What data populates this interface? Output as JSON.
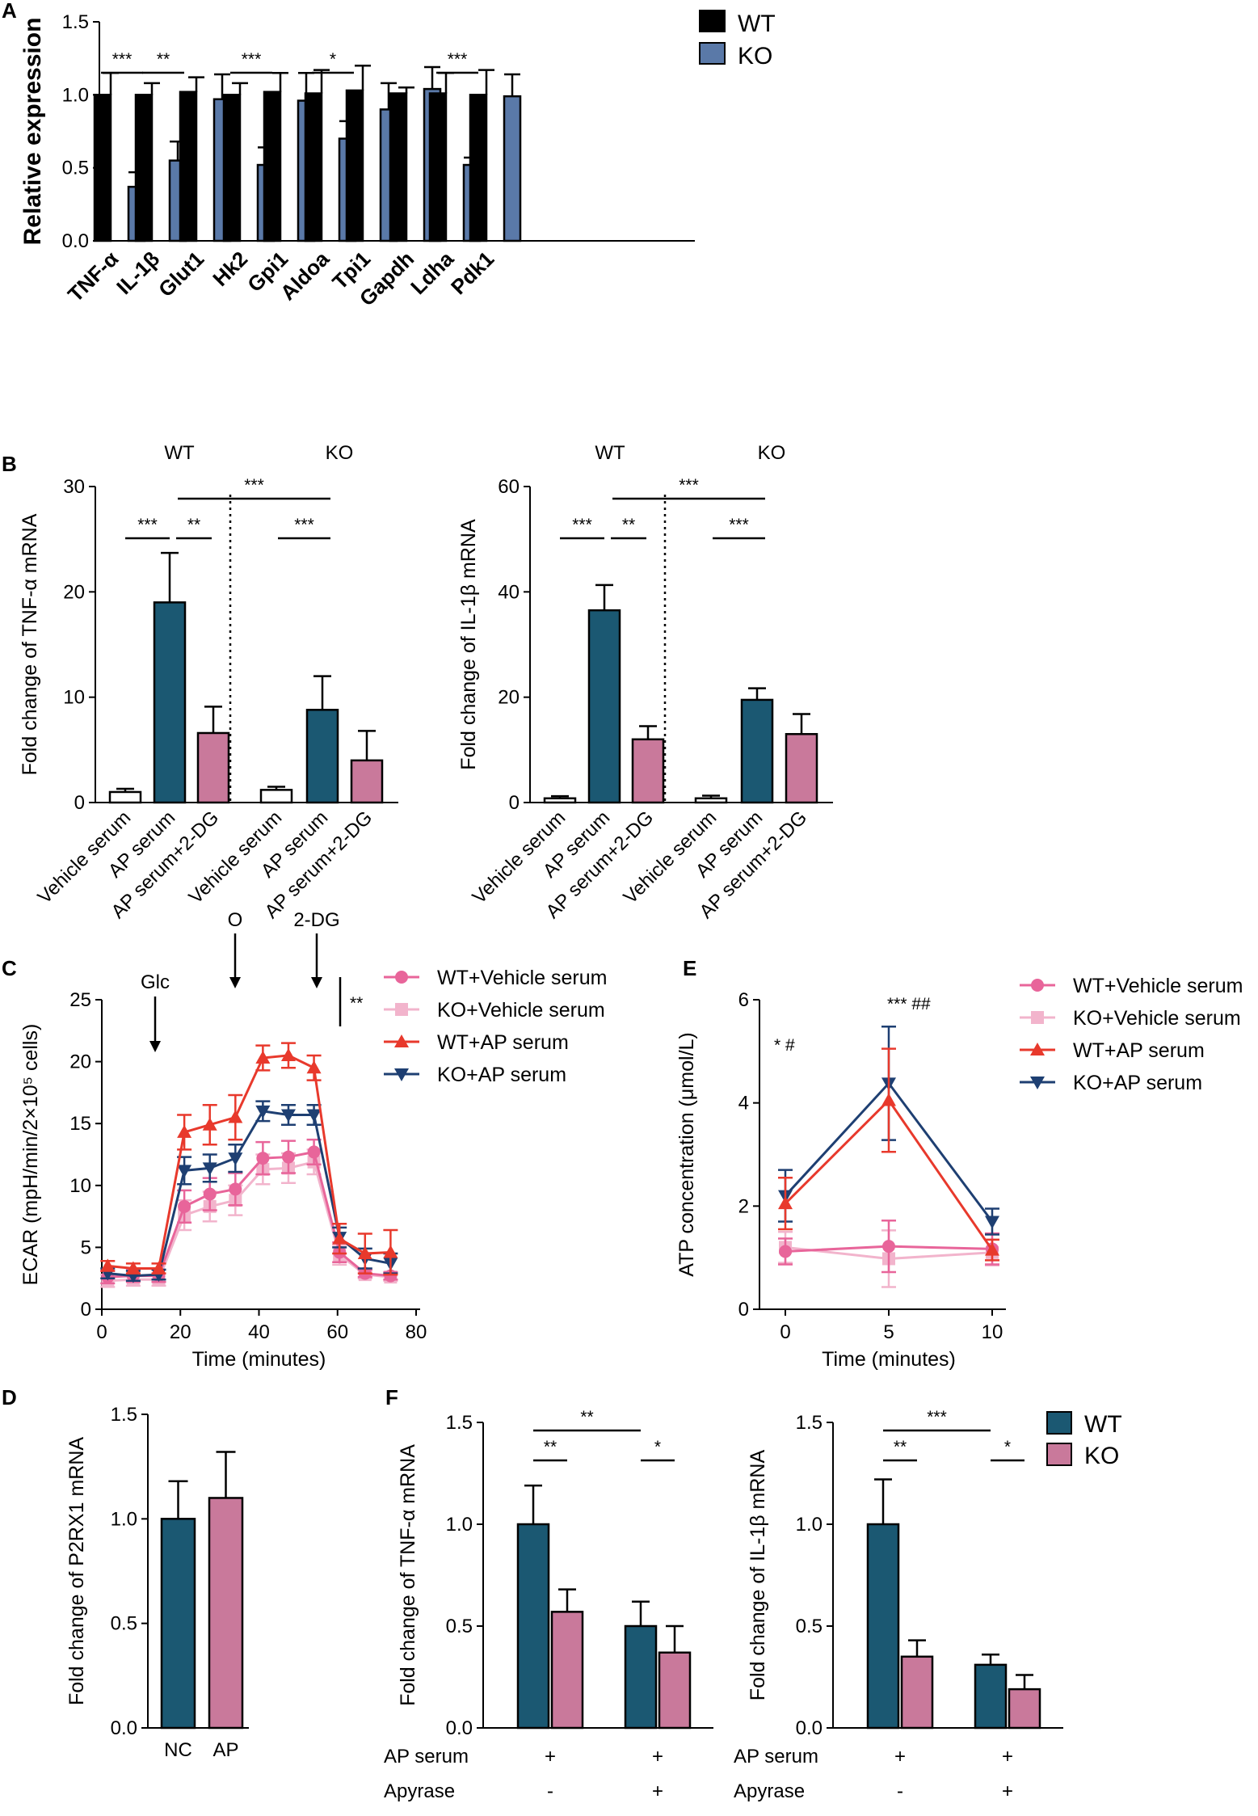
{
  "colors": {
    "wt_black": "#000000",
    "ko_blue": "#5a79a8",
    "teal": "#1b5872",
    "pink_bar": "#c9799b",
    "white_bar": "#ffffff",
    "line_wt_vehicle": "#e8659a",
    "line_ko_vehicle": "#f2b4cc",
    "line_wt_ap": "#e8392c",
    "line_ko_ap": "#1e3f72"
  },
  "chart_data": [
    {
      "panel": "A",
      "type": "bar",
      "ylabel": "Relative expression",
      "ylim": [
        0,
        1.5
      ],
      "yticks": [
        "0.0",
        "0.5",
        "1.0",
        "1.5"
      ],
      "categories": [
        "TNF-α",
        "IL-1β",
        "Glut1",
        "Hk2",
        "Gpi1",
        "Aldoa",
        "Tpi1",
        "Gapdh",
        "Ldha",
        "Pdk1"
      ],
      "series": [
        {
          "name": "WT",
          "values": [
            1.0,
            1.0,
            1.02,
            1.0,
            1.02,
            1.01,
            1.03,
            1.01,
            1.01,
            1.0
          ],
          "errors": [
            0.15,
            0.08,
            0.1,
            0.08,
            0.13,
            0.16,
            0.17,
            0.04,
            0.14,
            0.17
          ]
        },
        {
          "name": "KO",
          "values": [
            0.37,
            0.55,
            0.97,
            0.52,
            0.96,
            0.7,
            0.9,
            1.04,
            0.52,
            0.99
          ],
          "errors": [
            0.1,
            0.13,
            0.17,
            0.12,
            0.19,
            0.12,
            0.18,
            0.15,
            0.05,
            0.15
          ]
        }
      ],
      "legend": [
        "WT",
        "KO"
      ],
      "significance": [
        "***",
        "**",
        "***",
        "*",
        "***"
      ]
    },
    {
      "panel": "B-left",
      "type": "bar",
      "ylabel": "Fold change of TNF-α mRNA",
      "ylim": [
        0,
        30
      ],
      "yticks": [
        "0",
        "10",
        "20",
        "30"
      ],
      "groups": [
        "WT",
        "KO"
      ],
      "categories": [
        "Vehicle serum",
        "AP serum",
        "AP serum+2-DG",
        "Vehicle serum",
        "AP serum",
        "AP serum+2-DG"
      ],
      "values": [
        1.0,
        19.0,
        6.6,
        1.2,
        8.8,
        4.0
      ],
      "errors": [
        0.3,
        4.7,
        2.5,
        0.3,
        3.2,
        2.8
      ],
      "significance": [
        "***",
        "**",
        "***",
        "***"
      ]
    },
    {
      "panel": "B-right",
      "type": "bar",
      "ylabel": "Fold change of IL-1β mRNA",
      "ylim": [
        0,
        60
      ],
      "yticks": [
        "0",
        "20",
        "40",
        "60"
      ],
      "groups": [
        "WT",
        "KO"
      ],
      "categories": [
        "Vehicle serum",
        "AP serum",
        "AP serum+2-DG",
        "Vehicle serum",
        "AP serum",
        "AP serum+2-DG"
      ],
      "values": [
        0.8,
        36.5,
        12.0,
        0.8,
        19.5,
        13.0
      ],
      "errors": [
        0.4,
        4.8,
        2.5,
        0.5,
        2.2,
        3.8
      ],
      "significance": [
        "***",
        "**",
        "***",
        "***"
      ]
    },
    {
      "panel": "C",
      "type": "line",
      "xlabel": "Time (minutes)",
      "ylabel": "ECAR (mpH/min/2×10⁵ cells)",
      "xlim": [
        0,
        80
      ],
      "ylim": [
        0,
        25
      ],
      "xticks": [
        "0",
        "20",
        "40",
        "60",
        "80"
      ],
      "yticks": [
        "0",
        "5",
        "10",
        "15",
        "20",
        "25"
      ],
      "x": [
        1.5,
        8,
        14.5,
        21,
        27.5,
        34,
        41,
        47.5,
        54,
        60.5,
        67,
        73.5
      ],
      "series": [
        {
          "name": "WT+Vehicle serum",
          "marker": "circle",
          "values": [
            2.6,
            2.7,
            2.7,
            8.3,
            9.3,
            9.7,
            12.2,
            12.3,
            12.7,
            4.6,
            2.9,
            2.7
          ],
          "errors": [
            0.5,
            0.5,
            0.5,
            1.3,
            1.3,
            1.3,
            1.3,
            1.3,
            1.0,
            0.8,
            0.3,
            0.3
          ]
        },
        {
          "name": "KO+Vehicle serum",
          "marker": "square",
          "values": [
            2.3,
            2.4,
            2.4,
            7.6,
            8.3,
            8.8,
            11.3,
            11.4,
            11.9,
            4.4,
            2.8,
            2.6
          ],
          "errors": [
            0.5,
            0.5,
            0.5,
            1.2,
            1.2,
            1.2,
            1.2,
            1.2,
            1.0,
            0.8,
            0.3,
            0.3
          ]
        },
        {
          "name": "WT+AP serum",
          "marker": "triangle-up",
          "values": [
            3.5,
            3.3,
            3.3,
            14.3,
            14.9,
            15.5,
            20.3,
            20.5,
            19.5,
            5.7,
            4.5,
            4.6
          ],
          "errors": [
            0.4,
            0.4,
            0.4,
            1.4,
            1.6,
            1.8,
            1.0,
            1.0,
            1.0,
            1.2,
            1.6,
            1.8
          ]
        },
        {
          "name": "KO+AP serum",
          "marker": "triangle-down",
          "values": [
            2.9,
            2.7,
            2.8,
            11.2,
            11.4,
            12.2,
            16.0,
            15.7,
            15.7,
            5.8,
            4.1,
            3.7
          ],
          "errors": [
            0.4,
            0.4,
            0.4,
            1.1,
            1.1,
            1.1,
            0.8,
            0.8,
            0.8,
            0.8,
            0.8,
            0.8
          ]
        }
      ],
      "annotations": [
        "Glc",
        "O",
        "2-DG",
        "**"
      ]
    },
    {
      "panel": "D",
      "type": "bar",
      "ylabel": "Fold change of P2RX1 mRNA",
      "ylim": [
        0,
        1.5
      ],
      "yticks": [
        "0.0",
        "0.5",
        "1.0",
        "1.5"
      ],
      "categories": [
        "NC",
        "AP"
      ],
      "values": [
        1.0,
        1.1
      ],
      "errors": [
        0.18,
        0.22
      ]
    },
    {
      "panel": "E",
      "type": "line",
      "xlabel": "Time (minutes)",
      "ylabel": "ATP concentration (μmol/L)",
      "ylim": [
        0,
        6
      ],
      "xticks": [
        "0",
        "5",
        "10"
      ],
      "yticks": [
        "0",
        "2",
        "4",
        "6"
      ],
      "x": [
        0,
        5,
        10
      ],
      "series": [
        {
          "name": "WT+Vehicle serum",
          "marker": "circle",
          "values": [
            1.12,
            1.22,
            1.17
          ],
          "errors": [
            0.25,
            0.5,
            0.3
          ]
        },
        {
          "name": "KO+Vehicle serum",
          "marker": "square",
          "values": [
            1.2,
            0.98,
            1.1
          ],
          "errors": [
            0.3,
            0.55,
            0.25
          ]
        },
        {
          "name": "WT+AP serum",
          "marker": "triangle-up",
          "values": [
            2.05,
            4.05,
            1.15
          ],
          "errors": [
            0.5,
            1.0,
            0.2
          ]
        },
        {
          "name": "KO+AP serum",
          "marker": "triangle-down",
          "values": [
            2.2,
            4.38,
            1.7
          ],
          "errors": [
            0.5,
            1.1,
            0.25
          ]
        }
      ],
      "annotations": [
        "* #",
        "*** ##"
      ]
    },
    {
      "panel": "F-left",
      "type": "bar",
      "ylabel": "Fold change of TNF-α mRNA",
      "ylim": [
        0,
        1.5
      ],
      "yticks": [
        "0.0",
        "0.5",
        "1.0",
        "1.5"
      ],
      "series": [
        {
          "name": "WT",
          "values": [
            1.0,
            0.5
          ],
          "errors": [
            0.19,
            0.12
          ]
        },
        {
          "name": "KO",
          "values": [
            0.57,
            0.37
          ],
          "errors": [
            0.11,
            0.13
          ]
        }
      ],
      "row_labels": [
        "AP serum",
        "Apyrase"
      ],
      "ap_serum": [
        "+",
        "+"
      ],
      "apyrase": [
        "-",
        "+"
      ],
      "significance": [
        "**",
        "**",
        "*"
      ]
    },
    {
      "panel": "F-right",
      "type": "bar",
      "ylabel": "Fold change of IL-1β mRNA",
      "ylim": [
        0,
        1.5
      ],
      "yticks": [
        "0.0",
        "0.5",
        "1.0",
        "1.5"
      ],
      "series": [
        {
          "name": "WT",
          "values": [
            1.0,
            0.31
          ],
          "errors": [
            0.22,
            0.05
          ]
        },
        {
          "name": "KO",
          "values": [
            0.35,
            0.19
          ],
          "errors": [
            0.08,
            0.07
          ]
        }
      ],
      "row_labels": [
        "AP serum",
        "Apyrase"
      ],
      "ap_serum": [
        "+",
        "+"
      ],
      "apyrase": [
        "-",
        "+"
      ],
      "significance": [
        "**",
        "***",
        "*"
      ],
      "legend": [
        "WT",
        "KO"
      ]
    }
  ],
  "panel_letters": [
    "A",
    "B",
    "C",
    "D",
    "E",
    "F"
  ]
}
